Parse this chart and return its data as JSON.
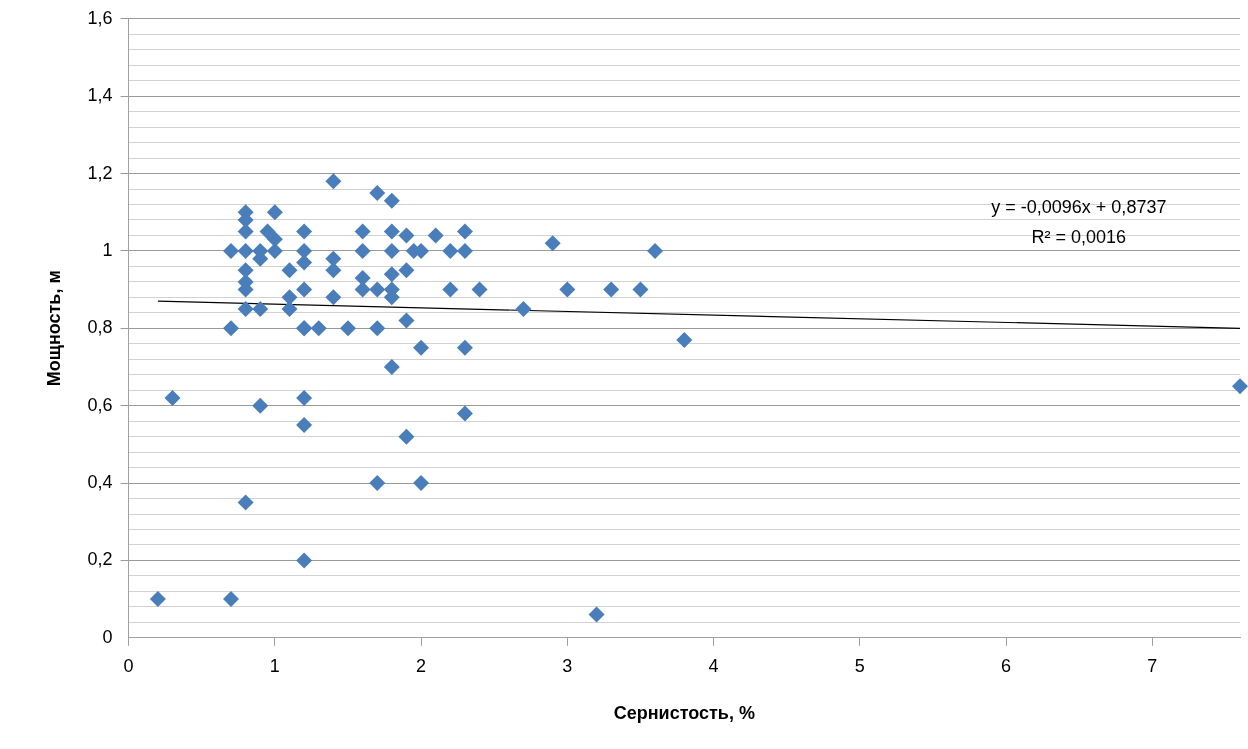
{
  "chart_data": {
    "type": "scatter",
    "xlabel": "Сернистость, %",
    "ylabel": "Мощность, м",
    "xlim": [
      0,
      7.6
    ],
    "xticks": [
      0,
      1,
      2,
      3,
      4,
      5,
      6,
      7
    ],
    "ylim": [
      0,
      1.6
    ],
    "yticks": [
      0,
      {
        "value": 0.04,
        "label": null
      },
      {
        "value": 0.08,
        "label": null
      },
      {
        "value": 0.12,
        "label": null
      },
      {
        "value": 0.16,
        "label": null
      },
      {
        "value": 0.2,
        "label": "0,2"
      },
      {
        "value": 0.24,
        "label": null
      },
      {
        "value": 0.28,
        "label": null
      },
      {
        "value": 0.32,
        "label": null
      },
      {
        "value": 0.36,
        "label": null
      },
      {
        "value": 0.4,
        "label": "0,4"
      },
      {
        "value": 0.44,
        "label": null
      },
      {
        "value": 0.48,
        "label": null
      },
      {
        "value": 0.52,
        "label": null
      },
      {
        "value": 0.56,
        "label": null
      },
      {
        "value": 0.6,
        "label": "0,6"
      },
      {
        "value": 0.64,
        "label": null
      },
      {
        "value": 0.68,
        "label": null
      },
      {
        "value": 0.72,
        "label": null
      },
      {
        "value": 0.76,
        "label": null
      },
      {
        "value": 0.8,
        "label": "0,8"
      },
      {
        "value": 0.84,
        "label": null
      },
      {
        "value": 0.88,
        "label": null
      },
      {
        "value": 0.92,
        "label": null
      },
      {
        "value": 0.96,
        "label": null
      },
      1,
      {
        "value": 1.04,
        "label": null
      },
      {
        "value": 1.08,
        "label": null
      },
      {
        "value": 1.12,
        "label": null
      },
      {
        "value": 1.16,
        "label": null
      },
      {
        "value": 1.2,
        "label": "1,2"
      },
      {
        "value": 1.24,
        "label": null
      },
      {
        "value": 1.28,
        "label": null
      },
      {
        "value": 1.32,
        "label": null
      },
      {
        "value": 1.36,
        "label": null
      },
      {
        "value": 1.4,
        "label": "1,4"
      },
      {
        "value": 1.44,
        "label": null
      },
      {
        "value": 1.48,
        "label": null
      },
      {
        "value": 1.52,
        "label": null
      },
      {
        "value": 1.56,
        "label": null
      },
      {
        "value": 1.6,
        "label": "1,6"
      }
    ],
    "grid": "y",
    "legend": false,
    "marker": "diamond",
    "annotations": [
      "y = -0,0096x + 0,8737",
      "R² = 0,0016"
    ],
    "series": [
      {
        "color": "#4a7ebb",
        "x": [
          0.2,
          0.3,
          0.7,
          0.7,
          0.7,
          0.8,
          0.8,
          0.8,
          0.8,
          0.8,
          0.8,
          0.8,
          0.8,
          0.8,
          0.9,
          0.9,
          0.9,
          0.9,
          0.95,
          1.0,
          1.0,
          1.0,
          1.1,
          1.1,
          1.1,
          1.2,
          1.2,
          1.2,
          1.2,
          1.2,
          1.2,
          1.2,
          1.2,
          1.2,
          1.3,
          1.4,
          1.4,
          1.4,
          1.4,
          1.5,
          1.6,
          1.6,
          1.6,
          1.6,
          1.7,
          1.7,
          1.7,
          1.7,
          1.8,
          1.8,
          1.8,
          1.8,
          1.8,
          1.8,
          1.8,
          1.9,
          1.9,
          1.9,
          1.9,
          1.95,
          2.0,
          2.0,
          2.0,
          2.1,
          2.2,
          2.2,
          2.3,
          2.3,
          2.3,
          2.3,
          2.4,
          2.7,
          2.9,
          3.0,
          3.2,
          3.3,
          3.5,
          3.6,
          3.8,
          7.6
        ],
        "values": [
          0.1,
          0.62,
          1.0,
          0.8,
          0.1,
          1.1,
          1.08,
          1.05,
          1.0,
          0.95,
          0.92,
          0.9,
          0.85,
          0.35,
          1.0,
          0.98,
          0.85,
          0.6,
          1.05,
          1.1,
          1.03,
          1.0,
          0.95,
          0.88,
          0.85,
          1.05,
          1.0,
          0.97,
          0.9,
          0.8,
          0.62,
          0.55,
          0.2,
          0.8,
          0.8,
          1.18,
          0.98,
          0.95,
          0.88,
          0.8,
          1.05,
          1.0,
          0.93,
          0.9,
          1.15,
          0.9,
          0.8,
          0.4,
          1.13,
          1.05,
          1.0,
          0.94,
          0.9,
          0.88,
          0.7,
          1.04,
          0.95,
          0.82,
          0.52,
          1.0,
          1.0,
          0.75,
          0.4,
          1.04,
          1.0,
          0.9,
          1.05,
          1.0,
          0.75,
          0.58,
          0.9,
          0.85,
          1.02,
          0.9,
          0.06,
          0.9,
          0.9,
          1.0,
          0.77,
          0.65
        ]
      },
      {
        "type": "line",
        "color": "#000000",
        "marker": "none",
        "x": [
          0.2,
          7.6
        ],
        "values": [
          0.87,
          0.8
        ]
      }
    ]
  }
}
